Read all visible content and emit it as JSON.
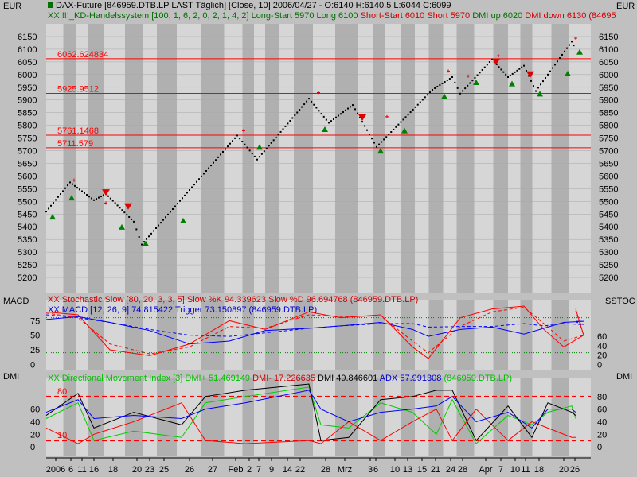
{
  "header": {
    "line1": "DAX-Future [846959.DTB.LP LAST Täglich] [Close, 10] 2006/04/27 - O:6140 H:6140.5 L:6044 C:6099",
    "line2": [
      {
        "text": "XX !!!_KD-Handelssystem [100, 1, 6, 2, 0, 2, 1, 4, 2] Long-Start 5970 Long 6100 ",
        "color": "#007000"
      },
      {
        "text": "Short-Start 6010 Short 5970 ",
        "color": "#d00000"
      },
      {
        "text": "DMI up 6020 ",
        "color": "#007000"
      },
      {
        "text": "DMI down 6130 ",
        "color": "#d00000"
      },
      {
        "text": "(84695",
        "color": "#d00000"
      }
    ]
  },
  "corners": {
    "top_left": "EUR",
    "top_right": "EUR",
    "mid_left": "MACD",
    "mid_right": "SSTOC",
    "bot_left": "DMI",
    "bot_right": "DMI"
  },
  "colors": {
    "background": "#c0c0c0",
    "band_light": "#d6d6d6",
    "band_dark": "#b0b0b0",
    "price": "#000000",
    "hline": "#ff0000",
    "macd": "#0000ff",
    "stoch": "#ff0000",
    "dmi_plus": "#00cc00",
    "dmi_minus": "#ff0000",
    "adx": "#0000ff",
    "dx": "#000000",
    "buy": "#008000",
    "sell": "#e00000"
  },
  "subtitles": {
    "stoch": "XX Stochastic Slow [80, 20, 3, 3, 5] Slow %K 94.339623 Slow %D 96.694768 (846959.DTB.LP)",
    "macd": "XX MACD [12, 26, 9] 74.815422 Trigger 73.150897 (846959.DTB.LP)",
    "dmi": [
      {
        "text": "XX Directional Movement Index [3] DMI+ 51.469149 ",
        "color": "#00c000"
      },
      {
        "text": "DMI- 17.226635 ",
        "color": "#d00000"
      },
      {
        "text": "DMI 49.846601 ",
        "color": "#000000"
      },
      {
        "text": "ADX 57.991308 ",
        "color": "#0000d0"
      },
      {
        "text": "(846959.DTB.LP)",
        "color": "#00c000"
      }
    ]
  },
  "chart_data": [
    {
      "type": "line",
      "ylim": [
        5150,
        6175
      ],
      "yticks": [
        5200,
        5250,
        5300,
        5350,
        5400,
        5450,
        5500,
        5550,
        5600,
        5650,
        5700,
        5750,
        5800,
        5850,
        5900,
        5950,
        6000,
        6050,
        6100,
        6150
      ],
      "hlines": [
        {
          "value": 6062.624834,
          "label": "6062.624834"
        },
        {
          "value": 5925.9512,
          "label": "5925.9512"
        },
        {
          "value": 5761.1468,
          "label": "5761.1468"
        },
        {
          "value": 5711.579,
          "label": "5711.579"
        }
      ],
      "series": [
        {
          "values": [
            5460,
            5575,
            5505,
            5530,
            5420,
            5330,
            5760,
            5665,
            5905,
            5810,
            5880,
            5715,
            5940,
            5990,
            5925,
            6060,
            5990,
            6035,
            5935,
            6130,
            6100
          ]
        }
      ],
      "x_sample": [
        0,
        30,
        60,
        75,
        110,
        120,
        240,
        265,
        330,
        355,
        385,
        415,
        485,
        510,
        520,
        560,
        580,
        600,
        615,
        660,
        665
      ],
      "buy_signals": [
        [
          8,
          5460
        ],
        [
          32,
          5535
        ],
        [
          95,
          5420
        ],
        [
          125,
          5355
        ],
        [
          172,
          5445
        ],
        [
          268,
          5735
        ],
        [
          350,
          5805
        ],
        [
          420,
          5720
        ],
        [
          450,
          5800
        ],
        [
          500,
          5935
        ],
        [
          540,
          5990
        ],
        [
          585,
          5985
        ],
        [
          620,
          5945
        ],
        [
          655,
          6025
        ],
        [
          670,
          6110
        ]
      ],
      "sell_signals": [
        [
          75,
          5510
        ],
        [
          103,
          5455
        ],
        [
          397,
          5805
        ],
        [
          565,
          6025
        ],
        [
          608,
          5975
        ]
      ],
      "plus_marks": [
        [
          35,
          5565
        ],
        [
          75,
          5475
        ],
        [
          248,
          5760
        ],
        [
          342,
          5910
        ],
        [
          428,
          5815
        ],
        [
          505,
          5995
        ],
        [
          530,
          5975
        ],
        [
          568,
          6055
        ],
        [
          665,
          6125
        ]
      ]
    },
    {
      "type": "line",
      "ylim": [
        -5,
        100
      ],
      "yticks": [
        0,
        25,
        50,
        75
      ],
      "rticks": [
        0,
        20,
        40,
        60
      ],
      "series": [
        {
          "name": "MACD",
          "values": [
            77,
            82,
            72,
            58,
            35,
            40,
            58,
            62,
            66,
            72,
            60,
            48,
            60,
            64,
            52,
            62,
            72,
            74,
            74
          ]
        },
        {
          "name": "Trigger",
          "values": [
            85,
            80,
            72,
            60,
            50,
            48,
            54,
            62,
            66,
            70,
            70,
            64,
            65,
            65,
            70,
            66,
            70,
            68,
            73
          ]
        },
        {
          "name": "Slow %K",
          "values": [
            90,
            85,
            25,
            15,
            35,
            75,
            60,
            90,
            80,
            85,
            30,
            10,
            80,
            95,
            100,
            60,
            30,
            50,
            95
          ]
        },
        {
          "name": "Slow %D",
          "values": [
            88,
            80,
            35,
            18,
            30,
            65,
            62,
            85,
            82,
            83,
            40,
            20,
            65,
            90,
            98,
            70,
            40,
            50,
            92
          ]
        }
      ],
      "x_sample": [
        0,
        40,
        80,
        130,
        180,
        230,
        275,
        330,
        370,
        420,
        460,
        480,
        520,
        560,
        600,
        625,
        650,
        675,
        665
      ]
    },
    {
      "type": "line",
      "ylim": [
        -10,
        100
      ],
      "yticks": [
        0,
        20,
        40,
        60
      ],
      "rticks": [
        0,
        20,
        40,
        60,
        80
      ],
      "reference_lines": [
        {
          "value": 80,
          "label": "80"
        },
        {
          "value": 10,
          "label": "10"
        }
      ],
      "series": [
        {
          "name": "DMI+",
          "values": [
            45,
            70,
            10,
            25,
            15,
            70,
            80,
            95,
            35,
            30,
            70,
            55,
            20,
            75,
            5,
            50,
            35,
            55,
            65,
            45
          ]
        },
        {
          "name": "DMI-",
          "values": [
            30,
            5,
            20,
            40,
            70,
            10,
            5,
            10,
            5,
            40,
            10,
            40,
            60,
            10,
            60,
            10,
            40,
            30,
            15,
            15
          ]
        },
        {
          "name": "DMI",
          "values": [
            50,
            85,
            30,
            55,
            35,
            80,
            90,
            100,
            10,
            15,
            75,
            80,
            90,
            90,
            10,
            65,
            15,
            70,
            55,
            50
          ]
        },
        {
          "name": "ADX",
          "values": [
            55,
            75,
            45,
            50,
            45,
            60,
            70,
            90,
            60,
            40,
            55,
            60,
            65,
            80,
            40,
            55,
            30,
            60,
            60,
            55
          ]
        }
      ],
      "x_sample": [
        0,
        40,
        60,
        110,
        170,
        200,
        250,
        330,
        345,
        380,
        420,
        460,
        490,
        510,
        540,
        580,
        610,
        630,
        660,
        665
      ]
    }
  ],
  "x_axis": {
    "labels": [
      "2006",
      "6",
      "11",
      "16",
      "18",
      "20",
      "23",
      "25",
      "26",
      "27",
      "Feb",
      "2",
      "7",
      "9",
      "14",
      "22",
      "28",
      "Mrz",
      "3",
      "6",
      "10",
      "13",
      "15",
      "21",
      "24",
      "28",
      "Apr",
      "7",
      "10",
      "11",
      "18",
      "20",
      "26"
    ],
    "positions": [
      70,
      89,
      103,
      118,
      142,
      172,
      188,
      206,
      238,
      267,
      296,
      313,
      325,
      341,
      361,
      377,
      409,
      433,
      465,
      472,
      496,
      512,
      530,
      547,
      566,
      581,
      610,
      629,
      647,
      660,
      677,
      708,
      722
    ]
  }
}
